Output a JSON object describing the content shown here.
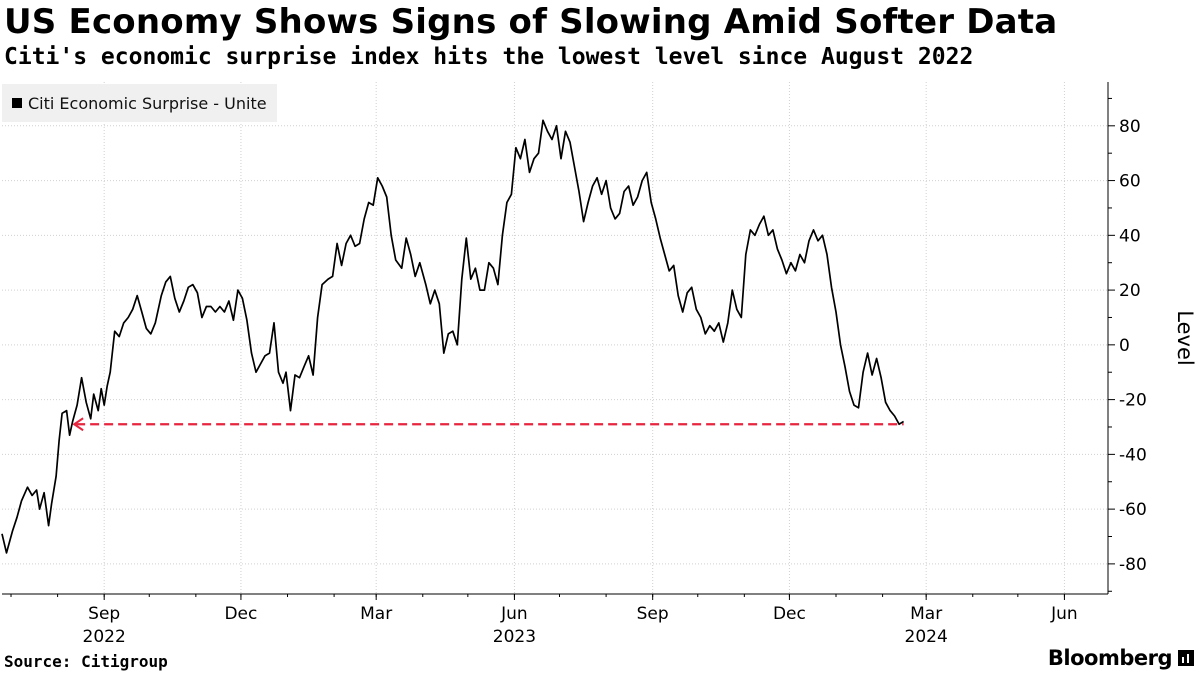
{
  "header": {
    "title": "US Economy Shows Signs of Slowing Amid Softer Data",
    "subtitle": "Citi's economic surprise index hits the lowest level since August 2022"
  },
  "footer": {
    "source": "Source: Citigroup",
    "brand": "Bloomberg"
  },
  "colors": {
    "line": "#000000",
    "reference": "#e8253f",
    "grid": "#d0d0d0",
    "legend_bg": "#f0f0f0"
  },
  "chart_data": {
    "type": "line",
    "title": "US Economy Shows Signs of Slowing Amid Softer Data",
    "subtitle": "Citi's economic surprise index hits the lowest level since August 2022",
    "ylabel": "Level",
    "xlabel": "",
    "ylim": [
      -91,
      96
    ],
    "yticks": [
      -80,
      -60,
      -40,
      -20,
      0,
      20,
      40,
      60,
      80
    ],
    "xlim": [
      "2022-06-25",
      "2024-06-30"
    ],
    "grid": true,
    "legend_position": "top-left",
    "x_ticks": [
      {
        "date": "2022-09-01",
        "label": "Sep",
        "year": "2022"
      },
      {
        "date": "2022-12-01",
        "label": "Dec",
        "year": ""
      },
      {
        "date": "2023-03-01",
        "label": "Mar",
        "year": ""
      },
      {
        "date": "2023-06-01",
        "label": "Jun",
        "year": "2023"
      },
      {
        "date": "2023-09-01",
        "label": "Sep",
        "year": ""
      },
      {
        "date": "2023-12-01",
        "label": "Dec",
        "year": ""
      },
      {
        "date": "2024-03-01",
        "label": "Mar",
        "year": "2024"
      },
      {
        "date": "2024-06-01",
        "label": "Jun",
        "year": ""
      }
    ],
    "series": [
      {
        "name": "Citi Economic Surprise - Unite",
        "points": [
          [
            "2022-06-25",
            -69
          ],
          [
            "2022-06-28",
            -76
          ],
          [
            "2022-07-02",
            -68
          ],
          [
            "2022-07-05",
            -63
          ],
          [
            "2022-07-08",
            -57
          ],
          [
            "2022-07-12",
            -52
          ],
          [
            "2022-07-15",
            -55
          ],
          [
            "2022-07-18",
            -53
          ],
          [
            "2022-07-20",
            -60
          ],
          [
            "2022-07-23",
            -54
          ],
          [
            "2022-07-26",
            -66
          ],
          [
            "2022-07-28",
            -58
          ],
          [
            "2022-07-31",
            -48
          ],
          [
            "2022-08-02",
            -35
          ],
          [
            "2022-08-04",
            -25
          ],
          [
            "2022-08-07",
            -24
          ],
          [
            "2022-08-09",
            -33
          ],
          [
            "2022-08-11",
            -28
          ],
          [
            "2022-08-14",
            -22
          ],
          [
            "2022-08-17",
            -12
          ],
          [
            "2022-08-20",
            -21
          ],
          [
            "2022-08-23",
            -27
          ],
          [
            "2022-08-25",
            -18
          ],
          [
            "2022-08-28",
            -24
          ],
          [
            "2022-08-30",
            -16
          ],
          [
            "2022-09-01",
            -22
          ],
          [
            "2022-09-03",
            -15
          ],
          [
            "2022-09-05",
            -10
          ],
          [
            "2022-09-08",
            5
          ],
          [
            "2022-09-11",
            3
          ],
          [
            "2022-09-14",
            8
          ],
          [
            "2022-09-17",
            10
          ],
          [
            "2022-09-20",
            13
          ],
          [
            "2022-09-23",
            18
          ],
          [
            "2022-09-26",
            12
          ],
          [
            "2022-09-29",
            6
          ],
          [
            "2022-10-02",
            4
          ],
          [
            "2022-10-05",
            8
          ],
          [
            "2022-10-09",
            18
          ],
          [
            "2022-10-12",
            23
          ],
          [
            "2022-10-15",
            25
          ],
          [
            "2022-10-18",
            17
          ],
          [
            "2022-10-21",
            12
          ],
          [
            "2022-10-24",
            16
          ],
          [
            "2022-10-27",
            21
          ],
          [
            "2022-10-30",
            22
          ],
          [
            "2022-11-02",
            19
          ],
          [
            "2022-11-05",
            10
          ],
          [
            "2022-11-08",
            14
          ],
          [
            "2022-11-11",
            14
          ],
          [
            "2022-11-14",
            12
          ],
          [
            "2022-11-17",
            14
          ],
          [
            "2022-11-20",
            12
          ],
          [
            "2022-11-23",
            16
          ],
          [
            "2022-11-26",
            9
          ],
          [
            "2022-11-29",
            20
          ],
          [
            "2022-12-02",
            17
          ],
          [
            "2022-12-05",
            9
          ],
          [
            "2022-12-08",
            -3
          ],
          [
            "2022-12-11",
            -10
          ],
          [
            "2022-12-14",
            -7
          ],
          [
            "2022-12-17",
            -4
          ],
          [
            "2022-12-20",
            -3
          ],
          [
            "2022-12-23",
            8
          ],
          [
            "2022-12-26",
            -10
          ],
          [
            "2022-12-29",
            -14
          ],
          [
            "2022-12-31",
            -10
          ],
          [
            "2023-01-03",
            -24
          ],
          [
            "2023-01-06",
            -11
          ],
          [
            "2023-01-09",
            -12
          ],
          [
            "2023-01-12",
            -8
          ],
          [
            "2023-01-15",
            -4
          ],
          [
            "2023-01-18",
            -11
          ],
          [
            "2023-01-21",
            10
          ],
          [
            "2023-01-24",
            22
          ],
          [
            "2023-01-28",
            24
          ],
          [
            "2023-01-31",
            25
          ],
          [
            "2023-02-03",
            37
          ],
          [
            "2023-02-06",
            29
          ],
          [
            "2023-02-09",
            37
          ],
          [
            "2023-02-12",
            40
          ],
          [
            "2023-02-15",
            36
          ],
          [
            "2023-02-18",
            37
          ],
          [
            "2023-02-21",
            46
          ],
          [
            "2023-02-24",
            52
          ],
          [
            "2023-02-27",
            51
          ],
          [
            "2023-03-02",
            61
          ],
          [
            "2023-03-05",
            58
          ],
          [
            "2023-03-08",
            54
          ],
          [
            "2023-03-11",
            40
          ],
          [
            "2023-03-14",
            31
          ],
          [
            "2023-03-18",
            28
          ],
          [
            "2023-03-21",
            39
          ],
          [
            "2023-03-24",
            33
          ],
          [
            "2023-03-27",
            25
          ],
          [
            "2023-03-30",
            30
          ],
          [
            "2023-04-03",
            22
          ],
          [
            "2023-04-06",
            15
          ],
          [
            "2023-04-09",
            20
          ],
          [
            "2023-04-12",
            15
          ],
          [
            "2023-04-15",
            -3
          ],
          [
            "2023-04-18",
            4
          ],
          [
            "2023-04-21",
            5
          ],
          [
            "2023-04-24",
            0
          ],
          [
            "2023-04-27",
            24
          ],
          [
            "2023-04-30",
            39
          ],
          [
            "2023-05-03",
            24
          ],
          [
            "2023-05-06",
            28
          ],
          [
            "2023-05-09",
            20
          ],
          [
            "2023-05-12",
            20
          ],
          [
            "2023-05-15",
            30
          ],
          [
            "2023-05-18",
            28
          ],
          [
            "2023-05-21",
            22
          ],
          [
            "2023-05-24",
            40
          ],
          [
            "2023-05-27",
            52
          ],
          [
            "2023-05-30",
            55
          ],
          [
            "2023-06-02",
            72
          ],
          [
            "2023-06-05",
            68
          ],
          [
            "2023-06-08",
            75
          ],
          [
            "2023-06-11",
            63
          ],
          [
            "2023-06-14",
            68
          ],
          [
            "2023-06-17",
            70
          ],
          [
            "2023-06-20",
            82
          ],
          [
            "2023-06-23",
            78
          ],
          [
            "2023-06-26",
            75
          ],
          [
            "2023-06-29",
            80
          ],
          [
            "2023-07-02",
            68
          ],
          [
            "2023-07-05",
            78
          ],
          [
            "2023-07-08",
            74
          ],
          [
            "2023-07-11",
            65
          ],
          [
            "2023-07-14",
            56
          ],
          [
            "2023-07-17",
            45
          ],
          [
            "2023-07-20",
            52
          ],
          [
            "2023-07-23",
            58
          ],
          [
            "2023-07-26",
            61
          ],
          [
            "2023-07-29",
            55
          ],
          [
            "2023-08-01",
            60
          ],
          [
            "2023-08-04",
            50
          ],
          [
            "2023-08-07",
            46
          ],
          [
            "2023-08-10",
            48
          ],
          [
            "2023-08-13",
            56
          ],
          [
            "2023-08-16",
            58
          ],
          [
            "2023-08-19",
            51
          ],
          [
            "2023-08-22",
            54
          ],
          [
            "2023-08-25",
            60
          ],
          [
            "2023-08-28",
            63
          ],
          [
            "2023-08-31",
            52
          ],
          [
            "2023-09-03",
            46
          ],
          [
            "2023-09-06",
            39
          ],
          [
            "2023-09-09",
            33
          ],
          [
            "2023-09-12",
            27
          ],
          [
            "2023-09-15",
            29
          ],
          [
            "2023-09-18",
            18
          ],
          [
            "2023-09-21",
            12
          ],
          [
            "2023-09-24",
            19
          ],
          [
            "2023-09-27",
            21
          ],
          [
            "2023-09-30",
            13
          ],
          [
            "2023-10-03",
            10
          ],
          [
            "2023-10-06",
            4
          ],
          [
            "2023-10-09",
            7
          ],
          [
            "2023-10-12",
            5
          ],
          [
            "2023-10-15",
            8
          ],
          [
            "2023-10-18",
            1
          ],
          [
            "2023-10-21",
            8
          ],
          [
            "2023-10-24",
            20
          ],
          [
            "2023-10-27",
            13
          ],
          [
            "2023-10-30",
            10
          ],
          [
            "2023-11-02",
            33
          ],
          [
            "2023-11-05",
            42
          ],
          [
            "2023-11-08",
            40
          ],
          [
            "2023-11-11",
            44
          ],
          [
            "2023-11-14",
            47
          ],
          [
            "2023-11-17",
            40
          ],
          [
            "2023-11-20",
            42
          ],
          [
            "2023-11-23",
            35
          ],
          [
            "2023-11-26",
            31
          ],
          [
            "2023-11-29",
            26
          ],
          [
            "2023-12-02",
            30
          ],
          [
            "2023-12-05",
            27
          ],
          [
            "2023-12-08",
            33
          ],
          [
            "2023-12-11",
            30
          ],
          [
            "2023-12-14",
            38
          ],
          [
            "2023-12-17",
            42
          ],
          [
            "2023-12-20",
            38
          ],
          [
            "2023-12-23",
            40
          ],
          [
            "2023-12-26",
            33
          ],
          [
            "2023-12-29",
            21
          ],
          [
            "2024-01-01",
            12
          ],
          [
            "2024-01-04",
            0
          ],
          [
            "2024-01-07",
            -8
          ],
          [
            "2024-01-10",
            -17
          ],
          [
            "2024-01-13",
            -22
          ],
          [
            "2024-01-16",
            -23
          ],
          [
            "2024-01-19",
            -10
          ],
          [
            "2024-01-22",
            -3
          ],
          [
            "2024-01-25",
            -11
          ],
          [
            "2024-01-28",
            -5
          ],
          [
            "2024-01-31",
            -12
          ],
          [
            "2024-02-03",
            -21
          ],
          [
            "2024-02-06",
            -24
          ],
          [
            "2024-02-09",
            -26
          ],
          [
            "2024-02-12",
            -29
          ],
          [
            "2024-02-15",
            -28
          ]
        ]
      }
    ],
    "reference_line": {
      "value": -29,
      "from_date": "2022-08-12",
      "to_date": "2024-02-15",
      "style": "dashed",
      "arrow": "left"
    }
  }
}
